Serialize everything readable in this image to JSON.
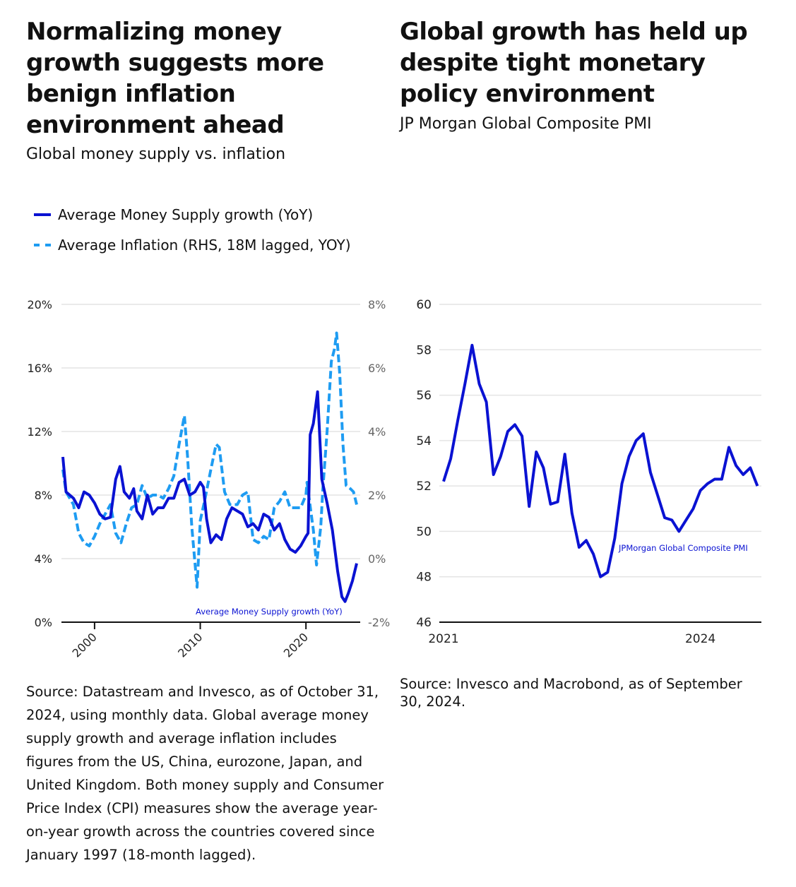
{
  "colors": {
    "money_supply": "#0a12d2",
    "inflation": "#1e9cf2",
    "grid": "#e4e4e4",
    "axis": "#111111"
  },
  "left": {
    "title_lines": [
      "Normalizing money",
      "growth suggests more",
      "benign inflation",
      "environment ahead"
    ],
    "subtitle": "Global money supply vs. inflation",
    "legend": [
      {
        "label": "Average Money Supply growth (YoY)",
        "style": "solid"
      },
      {
        "label": "Average Inflation (RHS, 18M lagged, YOY)",
        "style": "dashed"
      }
    ],
    "source_lines": [
      "Source: Datastream and Invesco, as of October 31,",
      "2024, using monthly data. Global average money",
      "supply growth and average inflation includes",
      "figures from the US, China, eurozone, Japan, and",
      "United Kingdom. Both money supply and Consumer",
      "Price Index (CPI) measures show the average year-",
      "on-year growth across the countries covered since",
      "January 1997 (18-month lagged)."
    ]
  },
  "right": {
    "title_lines": [
      "Global growth has held up",
      "despite tight monetary",
      "policy environment"
    ],
    "subtitle": "JP Morgan Global Composite PMI",
    "source_lines": [
      "Source: Invesco and Macrobond, as of September",
      "30, 2024."
    ]
  },
  "chart_data": [
    {
      "type": "line",
      "xlim": [
        1997,
        2024.8
      ],
      "x_ticks": [
        "2000",
        "2010",
        "2020"
      ],
      "x_tick_values": [
        2000,
        2010,
        2020
      ],
      "y_left": {
        "ticks": [
          "0%",
          "4%",
          "8%",
          "12%",
          "16%",
          "20%"
        ],
        "ylim": [
          0,
          20
        ]
      },
      "y_right": {
        "ticks": [
          "-2%",
          "0%",
          "2%",
          "4%",
          "6%",
          "8%"
        ],
        "ylim": [
          -2,
          8
        ]
      },
      "grid": true,
      "legend_placement": "top-left",
      "annotation": "Average Money Supply growth (YoY)",
      "series": [
        {
          "name": "Average Money Supply growth (YoY)",
          "axis": "left",
          "style": "solid",
          "x": [
            1997.0,
            1997.3,
            1998,
            1998.5,
            1999,
            1999.5,
            2000,
            2000.5,
            2001,
            2001.5,
            2002,
            2002.4,
            2002.8,
            2003.3,
            2003.7,
            2004,
            2004.5,
            2005,
            2005.5,
            2006,
            2006.5,
            2007,
            2007.5,
            2008,
            2008.5,
            2009,
            2009.5,
            2010,
            2010.3,
            2010.6,
            2011,
            2011.5,
            2012,
            2012.5,
            2013,
            2013.5,
            2014,
            2014.5,
            2015,
            2015.5,
            2016,
            2016.5,
            2017,
            2017.5,
            2018,
            2018.5,
            2019,
            2019.5,
            2020,
            2020.2,
            2020.4,
            2020.7,
            2021.1,
            2021.5,
            2022,
            2022.5,
            2023,
            2023.4,
            2023.7,
            2024,
            2024.4,
            2024.8
          ],
          "values": [
            10.4,
            8.2,
            7.8,
            7.2,
            8.2,
            8.0,
            7.5,
            6.8,
            6.5,
            6.6,
            9.0,
            9.8,
            8.2,
            7.8,
            8.4,
            7.0,
            6.5,
            8.0,
            6.8,
            7.2,
            7.2,
            7.8,
            7.8,
            8.8,
            9.0,
            8.0,
            8.2,
            8.8,
            8.5,
            6.5,
            5.0,
            5.5,
            5.2,
            6.5,
            7.2,
            7.0,
            6.8,
            6.0,
            6.2,
            5.8,
            6.8,
            6.6,
            5.8,
            6.2,
            5.2,
            4.6,
            4.4,
            4.8,
            5.4,
            5.6,
            11.8,
            12.5,
            14.5,
            9.0,
            7.5,
            5.8,
            3.2,
            1.6,
            1.3,
            1.8,
            2.6,
            3.7
          ]
        },
        {
          "name": "Average Inflation (RHS, 18M lagged, YOY)",
          "axis": "right",
          "style": "dashed",
          "x": [
            1997.0,
            1997.3,
            1998,
            1998.5,
            1999,
            1999.5,
            2000,
            2000.5,
            2001,
            2001.5,
            2002,
            2002.5,
            2003,
            2003.5,
            2004,
            2004.5,
            2005,
            2005.5,
            2006,
            2006.5,
            2007,
            2007.5,
            2008,
            2008.5,
            2008.8,
            2009.2,
            2009.7,
            2010,
            2010.4,
            2011,
            2011.5,
            2011.8,
            2012.3,
            2012.8,
            2013.5,
            2014,
            2014.5,
            2015,
            2015.5,
            2016,
            2016.5,
            2017,
            2017.5,
            2018,
            2018.5,
            2019,
            2019.5,
            2020,
            2020.1,
            2020.7,
            2021.0,
            2021.4,
            2021.6,
            2022.0,
            2022.4,
            2022.7,
            2022.9,
            2023.2,
            2023.5,
            2023.8,
            2024.2,
            2024.5,
            2024.8
          ],
          "values": [
            2.8,
            2.1,
            1.7,
            0.8,
            0.5,
            0.4,
            0.7,
            1.1,
            1.4,
            1.7,
            0.8,
            0.5,
            1.1,
            1.6,
            1.7,
            2.3,
            1.9,
            2.0,
            2.0,
            1.9,
            2.2,
            2.6,
            3.6,
            4.5,
            3.2,
            1.0,
            -0.9,
            1.2,
            1.8,
            2.8,
            3.6,
            3.5,
            2.1,
            1.7,
            1.7,
            2.0,
            2.1,
            0.6,
            0.5,
            0.7,
            0.6,
            1.6,
            1.8,
            2.1,
            1.6,
            1.6,
            1.6,
            2.0,
            2.4,
            0.9,
            -0.2,
            1.0,
            2.2,
            4.0,
            6.2,
            6.6,
            7.1,
            5.8,
            3.6,
            2.3,
            2.2,
            2.1,
            1.7
          ]
        }
      ]
    },
    {
      "type": "line",
      "x_ticks": [
        "2021",
        "2024"
      ],
      "x_start": "2021-01",
      "x_end": "2024-09",
      "frequency": "monthly",
      "ylim": [
        46,
        60
      ],
      "y_ticks": [
        "46",
        "48",
        "50",
        "52",
        "54",
        "56",
        "58",
        "60"
      ],
      "grid": true,
      "annotation": "JPMorgan Global Composite PMI",
      "series": [
        {
          "values": [
            52.2,
            53.2,
            54.9,
            56.5,
            58.2,
            56.5,
            55.7,
            52.5,
            53.3,
            54.4,
            54.7,
            54.2,
            51.1,
            53.5,
            52.8,
            51.2,
            51.3,
            53.4,
            50.8,
            49.3,
            49.6,
            49.0,
            48.0,
            48.2,
            49.7,
            52.1,
            53.3,
            54.0,
            54.3,
            52.6,
            51.6,
            50.6,
            50.5,
            50.0,
            50.5,
            51.0,
            51.8,
            52.1,
            52.3,
            52.3,
            53.7,
            52.9,
            52.5,
            52.8,
            52.0
          ]
        }
      ]
    }
  ]
}
